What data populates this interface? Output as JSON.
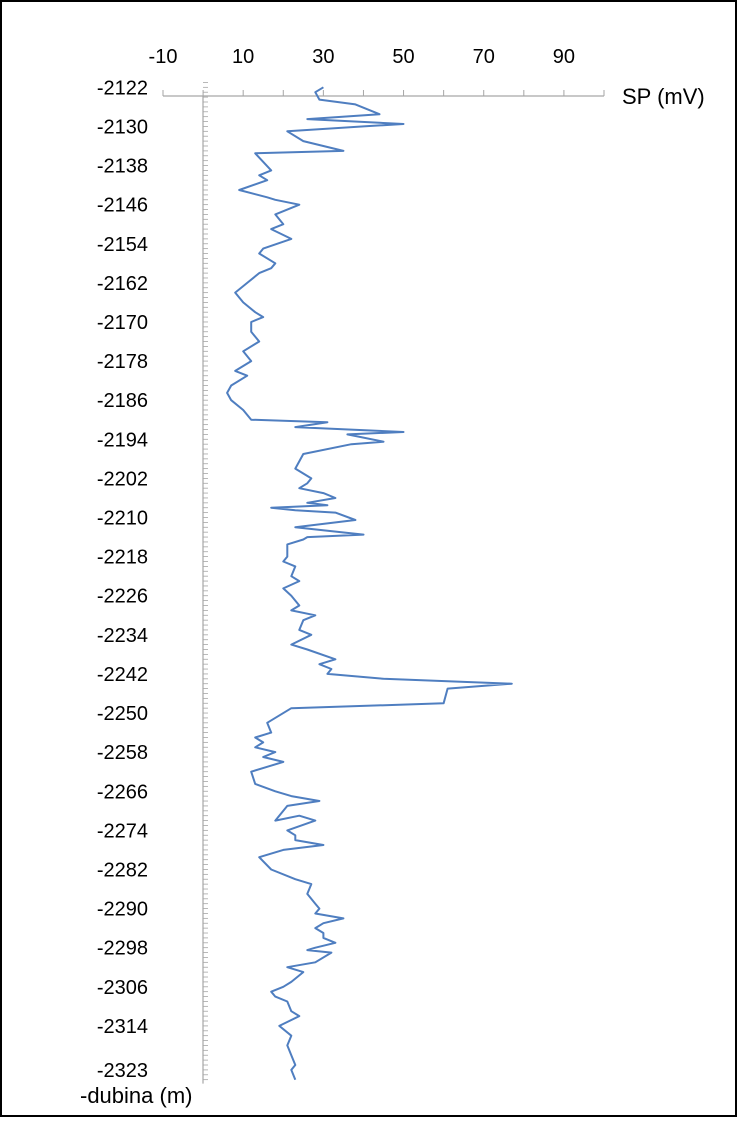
{
  "chart_data": {
    "type": "line",
    "xlabel": "SP (mV)",
    "ylabel": "-dubina (m)",
    "xlim": [
      -10,
      100
    ],
    "ylim": [
      -2120.5,
      -2326.5
    ],
    "x_ticks": [
      "-10",
      "10",
      "30",
      "50",
      "70",
      "90"
    ],
    "y_ticks": [
      "-2122",
      "-2130",
      "-2138",
      "-2146",
      "-2154",
      "-2162",
      "-2170",
      "-2178",
      "-2186",
      "-2194",
      "-2202",
      "-2210",
      "-2218",
      "-2226",
      "-2234",
      "-2242",
      "-2250",
      "-2258",
      "-2266",
      "-2274",
      "-2282",
      "-2290",
      "-2298",
      "-2306",
      "-2314",
      "-2323"
    ],
    "grid": false,
    "series": [
      {
        "color": "#4F7EC0",
        "points": [
          [
            30,
            -2122
          ],
          [
            28,
            -2123
          ],
          [
            29,
            -2124.5
          ],
          [
            38,
            -2125.5
          ],
          [
            44,
            -2127.5
          ],
          [
            26,
            -2128.5
          ],
          [
            50,
            -2129.5
          ],
          [
            40,
            -2130
          ],
          [
            21,
            -2131
          ],
          [
            25,
            -2133
          ],
          [
            35,
            -2135
          ],
          [
            13,
            -2135.5
          ],
          [
            17,
            -2139
          ],
          [
            14,
            -2140
          ],
          [
            16,
            -2141
          ],
          [
            9,
            -2143
          ],
          [
            16,
            -2144.5
          ],
          [
            18,
            -2145
          ],
          [
            24,
            -2146
          ],
          [
            18,
            -2148
          ],
          [
            20,
            -2150
          ],
          [
            17,
            -2151
          ],
          [
            22,
            -2153
          ],
          [
            15,
            -2155
          ],
          [
            14,
            -2156
          ],
          [
            18,
            -2158
          ],
          [
            17,
            -2159
          ],
          [
            14,
            -2160
          ],
          [
            11,
            -2162
          ],
          [
            8,
            -2164
          ],
          [
            10,
            -2166
          ],
          [
            13,
            -2168
          ],
          [
            15,
            -2169
          ],
          [
            12,
            -2170
          ],
          [
            12,
            -2172
          ],
          [
            14,
            -2174
          ],
          [
            10,
            -2176
          ],
          [
            12,
            -2178
          ],
          [
            8,
            -2180
          ],
          [
            11,
            -2181
          ],
          [
            7,
            -2183
          ],
          [
            6,
            -2184.5
          ],
          [
            7,
            -2186
          ],
          [
            10,
            -2188
          ],
          [
            12,
            -2190
          ],
          [
            31,
            -2190.5
          ],
          [
            23,
            -2191.5
          ],
          [
            50,
            -2192.5
          ],
          [
            36,
            -2193
          ],
          [
            45,
            -2194.5
          ],
          [
            37,
            -2195
          ],
          [
            25,
            -2197
          ],
          [
            23,
            -2200
          ],
          [
            27,
            -2202
          ],
          [
            26,
            -2203
          ],
          [
            24,
            -2204
          ],
          [
            30,
            -2205
          ],
          [
            33,
            -2206
          ],
          [
            26,
            -2207
          ],
          [
            31,
            -2207.5
          ],
          [
            17,
            -2208
          ],
          [
            23,
            -2208.5
          ],
          [
            33,
            -2209
          ],
          [
            38,
            -2210.5
          ],
          [
            23,
            -2212
          ],
          [
            40,
            -2213.5
          ],
          [
            26,
            -2214
          ],
          [
            25,
            -2214.5
          ],
          [
            21,
            -2215.5
          ],
          [
            21,
            -2218
          ],
          [
            20,
            -2219
          ],
          [
            23,
            -2220
          ],
          [
            22,
            -2222
          ],
          [
            24,
            -2223
          ],
          [
            20,
            -2224.5
          ],
          [
            22,
            -2226
          ],
          [
            24,
            -2228
          ],
          [
            22,
            -2229
          ],
          [
            28,
            -2230
          ],
          [
            25,
            -2231
          ],
          [
            24,
            -2233
          ],
          [
            27,
            -2234
          ],
          [
            22,
            -2236
          ],
          [
            26,
            -2237
          ],
          [
            33,
            -2239
          ],
          [
            29,
            -2240
          ],
          [
            32,
            -2241
          ],
          [
            31,
            -2242
          ],
          [
            45,
            -2243
          ],
          [
            77,
            -2244
          ],
          [
            61,
            -2245
          ],
          [
            60,
            -2248
          ],
          [
            22,
            -2249
          ],
          [
            16,
            -2252
          ],
          [
            17,
            -2254
          ],
          [
            13,
            -2255
          ],
          [
            15,
            -2256
          ],
          [
            13,
            -2257
          ],
          [
            18,
            -2258
          ],
          [
            15,
            -2259
          ],
          [
            20,
            -2260
          ],
          [
            16,
            -2261
          ],
          [
            12,
            -2262
          ],
          [
            13,
            -2264.5
          ],
          [
            18,
            -2266
          ],
          [
            22,
            -2267
          ],
          [
            29,
            -2268
          ],
          [
            21,
            -2269
          ],
          [
            18,
            -2272
          ],
          [
            24,
            -2271
          ],
          [
            28,
            -2272
          ],
          [
            21,
            -2274
          ],
          [
            23,
            -2275
          ],
          [
            23,
            -2276
          ],
          [
            30,
            -2277
          ],
          [
            20,
            -2278
          ],
          [
            14,
            -2279.5
          ],
          [
            17,
            -2282
          ],
          [
            23,
            -2284
          ],
          [
            27,
            -2285
          ],
          [
            26,
            -2287
          ],
          [
            28,
            -2289
          ],
          [
            29,
            -2290
          ],
          [
            28,
            -2291
          ],
          [
            35,
            -2292
          ],
          [
            30,
            -2293
          ],
          [
            28,
            -2294
          ],
          [
            30,
            -2295
          ],
          [
            30,
            -2296
          ],
          [
            33,
            -2297
          ],
          [
            28,
            -2298
          ],
          [
            26,
            -2298.5
          ],
          [
            32,
            -2299
          ],
          [
            28,
            -2301
          ],
          [
            21,
            -2302
          ],
          [
            25,
            -2303
          ],
          [
            22,
            -2305
          ],
          [
            20,
            -2306
          ],
          [
            17,
            -2307
          ],
          [
            18,
            -2308
          ],
          [
            21,
            -2309
          ],
          [
            22,
            -2311
          ],
          [
            24,
            -2312
          ],
          [
            19,
            -2314
          ],
          [
            22,
            -2316
          ],
          [
            21,
            -2318
          ],
          [
            22,
            -2320
          ],
          [
            23,
            -2322
          ],
          [
            22,
            -2323
          ],
          [
            23,
            -2325
          ]
        ]
      }
    ]
  }
}
